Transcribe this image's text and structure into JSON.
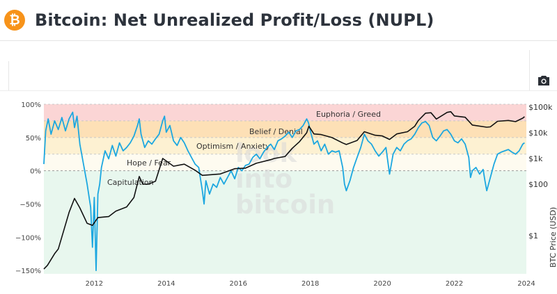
{
  "header": {
    "title": "Bitcoin: Net Unrealized Profit/Loss (NUPL)",
    "logo_symbol": "₿",
    "logo_color": "#f7931a"
  },
  "toolbar": {
    "camera_icon": "camera-icon"
  },
  "watermark": [
    "look",
    "into",
    "bitcoin"
  ],
  "chart_data": {
    "type": "line",
    "title": "",
    "x_ticks": [
      "2012",
      "2014",
      "2016",
      "2018",
      "2020",
      "2022",
      "2024"
    ],
    "y_left_ticks": [
      "100%",
      "50%",
      "0%",
      "−50%",
      "−100%",
      "−150%"
    ],
    "y_left_range": [
      -155,
      100
    ],
    "y_right_label": "BTC Price (USD)",
    "y_right_ticks": [
      "$100k",
      "$10k",
      "$1k",
      "$100",
      "$1"
    ],
    "y_right_scale": "log",
    "zones": [
      {
        "label": "Euphoria / Greed",
        "from": 75,
        "to": 100,
        "color": "#fbd5d5"
      },
      {
        "label": "Belief / Denial",
        "from": 50,
        "to": 75,
        "color": "#fde0b6"
      },
      {
        "label": "Optimism / Anxiety",
        "from": 25,
        "to": 50,
        "color": "#fdf1d2"
      },
      {
        "label": "Hope / Fear",
        "from": 0,
        "to": 25,
        "color": "#fefbf0"
      },
      {
        "label": "Capitulation",
        "from": -155,
        "to": 0,
        "color": "#e8f7ee"
      }
    ],
    "series": [
      {
        "color": "#1ca7e0",
        "axis": "left",
        "points": [
          [
            2010.6,
            10
          ],
          [
            2010.65,
            60
          ],
          [
            2010.72,
            78
          ],
          [
            2010.8,
            55
          ],
          [
            2010.9,
            75
          ],
          [
            2011.0,
            62
          ],
          [
            2011.1,
            80
          ],
          [
            2011.2,
            60
          ],
          [
            2011.3,
            78
          ],
          [
            2011.4,
            88
          ],
          [
            2011.45,
            65
          ],
          [
            2011.52,
            82
          ],
          [
            2011.6,
            40
          ],
          [
            2011.7,
            10
          ],
          [
            2011.8,
            -20
          ],
          [
            2011.9,
            -55
          ],
          [
            2011.95,
            -115
          ],
          [
            2012.0,
            -40
          ],
          [
            2012.05,
            -150
          ],
          [
            2012.1,
            -35
          ],
          [
            2012.15,
            -20
          ],
          [
            2012.2,
            5
          ],
          [
            2012.3,
            30
          ],
          [
            2012.4,
            18
          ],
          [
            2012.5,
            38
          ],
          [
            2012.6,
            22
          ],
          [
            2012.7,
            42
          ],
          [
            2012.8,
            30
          ],
          [
            2012.9,
            35
          ],
          [
            2013.0,
            42
          ],
          [
            2013.1,
            52
          ],
          [
            2013.2,
            68
          ],
          [
            2013.25,
            78
          ],
          [
            2013.3,
            55
          ],
          [
            2013.4,
            35
          ],
          [
            2013.5,
            45
          ],
          [
            2013.6,
            40
          ],
          [
            2013.7,
            48
          ],
          [
            2013.8,
            55
          ],
          [
            2013.9,
            75
          ],
          [
            2013.95,
            82
          ],
          [
            2014.0,
            58
          ],
          [
            2014.1,
            68
          ],
          [
            2014.2,
            45
          ],
          [
            2014.3,
            38
          ],
          [
            2014.4,
            50
          ],
          [
            2014.5,
            42
          ],
          [
            2014.6,
            30
          ],
          [
            2014.7,
            20
          ],
          [
            2014.8,
            10
          ],
          [
            2014.9,
            5
          ],
          [
            2015.0,
            -30
          ],
          [
            2015.05,
            -50
          ],
          [
            2015.1,
            -15
          ],
          [
            2015.2,
            -35
          ],
          [
            2015.3,
            -20
          ],
          [
            2015.4,
            -25
          ],
          [
            2015.5,
            -10
          ],
          [
            2015.6,
            -20
          ],
          [
            2015.7,
            -10
          ],
          [
            2015.8,
            0
          ],
          [
            2015.9,
            -12
          ],
          [
            2016.0,
            5
          ],
          [
            2016.1,
            0
          ],
          [
            2016.2,
            8
          ],
          [
            2016.3,
            10
          ],
          [
            2016.4,
            20
          ],
          [
            2016.5,
            25
          ],
          [
            2016.6,
            18
          ],
          [
            2016.7,
            28
          ],
          [
            2016.8,
            35
          ],
          [
            2016.9,
            40
          ],
          [
            2017.0,
            32
          ],
          [
            2017.1,
            45
          ],
          [
            2017.2,
            48
          ],
          [
            2017.3,
            52
          ],
          [
            2017.4,
            58
          ],
          [
            2017.5,
            50
          ],
          [
            2017.6,
            60
          ],
          [
            2017.7,
            62
          ],
          [
            2017.8,
            68
          ],
          [
            2017.9,
            78
          ],
          [
            2017.95,
            72
          ],
          [
            2018.0,
            60
          ],
          [
            2018.1,
            40
          ],
          [
            2018.2,
            45
          ],
          [
            2018.3,
            30
          ],
          [
            2018.4,
            40
          ],
          [
            2018.5,
            25
          ],
          [
            2018.6,
            30
          ],
          [
            2018.7,
            28
          ],
          [
            2018.8,
            30
          ],
          [
            2018.9,
            5
          ],
          [
            2018.95,
            -20
          ],
          [
            2019.0,
            -30
          ],
          [
            2019.1,
            -15
          ],
          [
            2019.2,
            5
          ],
          [
            2019.3,
            20
          ],
          [
            2019.4,
            35
          ],
          [
            2019.5,
            55
          ],
          [
            2019.6,
            45
          ],
          [
            2019.7,
            40
          ],
          [
            2019.8,
            30
          ],
          [
            2019.9,
            22
          ],
          [
            2020.0,
            28
          ],
          [
            2020.1,
            35
          ],
          [
            2020.2,
            -5
          ],
          [
            2020.25,
            10
          ],
          [
            2020.3,
            25
          ],
          [
            2020.4,
            35
          ],
          [
            2020.5,
            30
          ],
          [
            2020.6,
            40
          ],
          [
            2020.7,
            45
          ],
          [
            2020.8,
            48
          ],
          [
            2020.9,
            55
          ],
          [
            2021.0,
            65
          ],
          [
            2021.1,
            72
          ],
          [
            2021.2,
            74
          ],
          [
            2021.3,
            68
          ],
          [
            2021.4,
            50
          ],
          [
            2021.5,
            45
          ],
          [
            2021.6,
            52
          ],
          [
            2021.7,
            60
          ],
          [
            2021.8,
            62
          ],
          [
            2021.9,
            55
          ],
          [
            2022.0,
            45
          ],
          [
            2022.1,
            42
          ],
          [
            2022.2,
            48
          ],
          [
            2022.3,
            40
          ],
          [
            2022.4,
            20
          ],
          [
            2022.45,
            -10
          ],
          [
            2022.5,
            0
          ],
          [
            2022.6,
            5
          ],
          [
            2022.7,
            -5
          ],
          [
            2022.8,
            2
          ],
          [
            2022.85,
            -15
          ],
          [
            2022.9,
            -30
          ],
          [
            2023.0,
            -10
          ],
          [
            2023.1,
            10
          ],
          [
            2023.2,
            25
          ],
          [
            2023.3,
            28
          ],
          [
            2023.4,
            30
          ],
          [
            2023.5,
            32
          ],
          [
            2023.6,
            28
          ],
          [
            2023.7,
            25
          ],
          [
            2023.8,
            30
          ],
          [
            2023.9,
            40
          ],
          [
            2023.95,
            42
          ]
        ]
      },
      {
        "color": "#111111",
        "axis": "right",
        "points": [
          [
            2010.6,
            0.05
          ],
          [
            2010.7,
            0.07
          ],
          [
            2010.9,
            0.2
          ],
          [
            2011.0,
            0.3
          ],
          [
            2011.1,
            0.9
          ],
          [
            2011.3,
            8
          ],
          [
            2011.45,
            28
          ],
          [
            2011.6,
            12
          ],
          [
            2011.8,
            3
          ],
          [
            2011.95,
            2.5
          ],
          [
            2012.1,
            5
          ],
          [
            2012.4,
            5.5
          ],
          [
            2012.6,
            9
          ],
          [
            2012.9,
            13
          ],
          [
            2013.1,
            30
          ],
          [
            2013.25,
            200
          ],
          [
            2013.35,
            100
          ],
          [
            2013.5,
            100
          ],
          [
            2013.7,
            130
          ],
          [
            2013.9,
            1000
          ],
          [
            2014.0,
            800
          ],
          [
            2014.2,
            500
          ],
          [
            2014.5,
            600
          ],
          [
            2014.8,
            350
          ],
          [
            2015.0,
            220
          ],
          [
            2015.5,
            250
          ],
          [
            2015.9,
            400
          ],
          [
            2016.2,
            420
          ],
          [
            2016.5,
            650
          ],
          [
            2016.9,
            900
          ],
          [
            2017.0,
            1000
          ],
          [
            2017.3,
            1200
          ],
          [
            2017.5,
            2500
          ],
          [
            2017.7,
            4500
          ],
          [
            2017.9,
            10000
          ],
          [
            2017.96,
            18000
          ],
          [
            2018.1,
            9000
          ],
          [
            2018.3,
            8500
          ],
          [
            2018.6,
            6500
          ],
          [
            2018.9,
            4000
          ],
          [
            2019.0,
            3500
          ],
          [
            2019.3,
            5000
          ],
          [
            2019.5,
            11000
          ],
          [
            2019.8,
            8000
          ],
          [
            2020.0,
            7500
          ],
          [
            2020.2,
            5500
          ],
          [
            2020.4,
            9000
          ],
          [
            2020.7,
            11000
          ],
          [
            2020.9,
            18000
          ],
          [
            2021.0,
            30000
          ],
          [
            2021.2,
            58000
          ],
          [
            2021.35,
            60000
          ],
          [
            2021.5,
            34000
          ],
          [
            2021.8,
            62000
          ],
          [
            2021.9,
            66000
          ],
          [
            2022.0,
            45000
          ],
          [
            2022.3,
            40000
          ],
          [
            2022.5,
            20000
          ],
          [
            2022.9,
            16500
          ],
          [
            2023.0,
            17000
          ],
          [
            2023.2,
            28000
          ],
          [
            2023.5,
            30000
          ],
          [
            2023.7,
            27000
          ],
          [
            2023.9,
            37000
          ],
          [
            2023.95,
            42000
          ]
        ]
      }
    ]
  }
}
